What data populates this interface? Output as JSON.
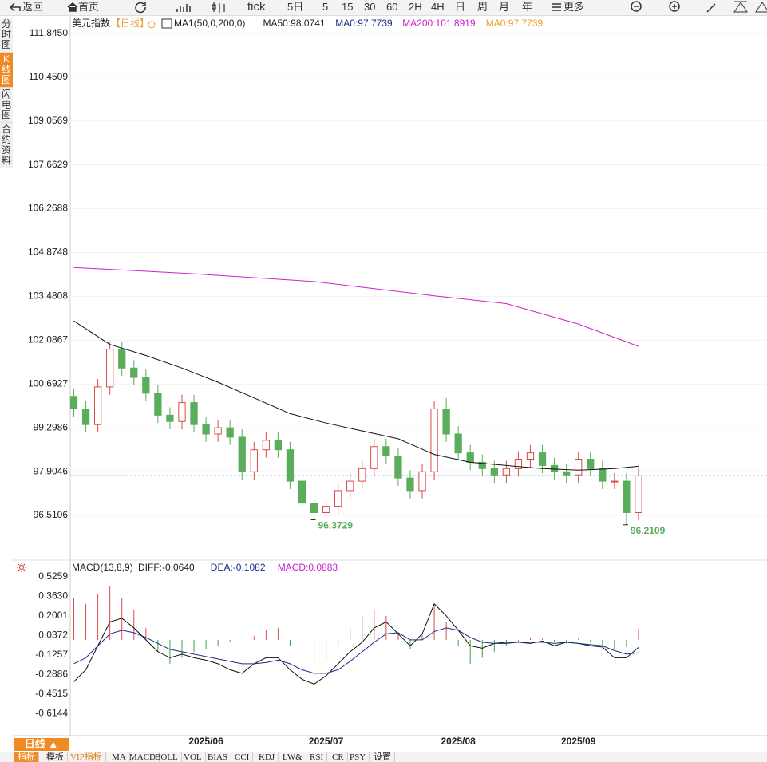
{
  "toolbar": {
    "items": [
      "返回",
      "首页",
      "tick",
      "5日",
      "5",
      "15",
      "30",
      "60",
      "2H",
      "4H",
      "日",
      "周",
      "月",
      "年",
      "更多"
    ]
  },
  "sidebar": {
    "tabs": [
      "分时图",
      "K线图",
      "闪电图",
      "合约资料"
    ],
    "active": 1
  },
  "chart_data": [
    {
      "type": "candlestick",
      "title": "美元指数",
      "period": "【日线】",
      "legend": [
        {
          "text": "MA1(50,0,200,0)",
          "color": "#222222"
        },
        {
          "text": "MA50:98.0741",
          "color": "#222222"
        },
        {
          "text": "MA0:97.7739",
          "color": "#1a2a8c"
        },
        {
          "text": "MA200:101.8919",
          "color": "#cc22cc"
        },
        {
          "text": "MA0:97.7739",
          "color": "#e8a030"
        }
      ],
      "up_color": "#d94a4a",
      "down_color": "#5aad5a",
      "xlim": [
        -0.3,
        57.7
      ],
      "ylim": [
        95.14,
        112.35
      ],
      "grid": true,
      "yticks": [
        {
          "value": 111.845,
          "label": "111.8450"
        },
        {
          "value": 110.4509,
          "label": "110.4509"
        },
        {
          "value": 109.0569,
          "label": "109.0569"
        },
        {
          "value": 107.6629,
          "label": "107.6629"
        },
        {
          "value": 106.2688,
          "label": "106.2688"
        },
        {
          "value": 104.8748,
          "label": "104.8748"
        },
        {
          "value": 103.4808,
          "label": "103.4808"
        },
        {
          "value": 102.0867,
          "label": "102.0867"
        },
        {
          "value": 100.6927,
          "label": "100.6927"
        },
        {
          "value": 99.2986,
          "label": "99.2986"
        },
        {
          "value": 97.9046,
          "label": "97.9046"
        },
        {
          "value": 96.5106,
          "label": "96.5106"
        }
      ],
      "open": [
        100.3,
        99.9,
        99.4,
        100.6,
        101.8,
        101.2,
        100.9,
        100.4,
        99.7,
        99.5,
        100.1,
        99.4,
        99.1,
        99.3,
        99.0,
        97.9,
        98.6,
        98.9,
        98.6,
        97.6,
        96.9,
        96.6,
        96.8,
        97.3,
        97.6,
        98.0,
        98.7,
        98.4,
        97.7,
        97.3,
        97.9,
        99.9,
        99.1,
        98.5,
        98.2,
        98.0,
        97.8,
        98.0,
        98.3,
        98.5,
        98.1,
        97.9,
        97.8,
        98.3,
        98.0,
        97.6,
        97.6,
        96.6
      ],
      "high": [
        100.55,
        100.15,
        100.85,
        102.05,
        102.05,
        101.45,
        101.15,
        100.65,
        99.95,
        100.35,
        100.35,
        99.65,
        99.55,
        99.55,
        99.25,
        98.85,
        99.15,
        99.15,
        98.85,
        97.85,
        97.15,
        97.05,
        97.55,
        97.85,
        98.25,
        98.95,
        98.95,
        98.65,
        97.95,
        98.15,
        100.15,
        100.25,
        99.35,
        98.75,
        98.45,
        98.25,
        98.25,
        98.55,
        98.75,
        98.75,
        98.35,
        98.15,
        98.55,
        98.55,
        98.25,
        97.85,
        97.85,
        98.0
      ],
      "low": [
        99.65,
        99.15,
        99.15,
        100.35,
        100.95,
        100.65,
        100.15,
        99.45,
        99.25,
        99.25,
        99.15,
        98.85,
        98.85,
        98.75,
        97.65,
        97.65,
        98.35,
        98.35,
        97.35,
        96.65,
        96.3729,
        96.45,
        96.55,
        97.05,
        97.35,
        97.75,
        98.15,
        97.45,
        97.05,
        97.05,
        97.65,
        98.85,
        98.25,
        97.95,
        97.75,
        97.55,
        97.55,
        97.75,
        98.05,
        97.85,
        97.65,
        97.55,
        97.55,
        97.75,
        97.35,
        97.35,
        96.2109,
        96.35
      ],
      "close": [
        99.9,
        99.4,
        100.6,
        101.8,
        101.2,
        100.9,
        100.4,
        99.7,
        99.5,
        100.1,
        99.4,
        99.1,
        99.3,
        99.0,
        97.9,
        98.6,
        98.9,
        98.6,
        97.6,
        96.9,
        96.6,
        96.8,
        97.3,
        97.6,
        98.0,
        98.7,
        98.4,
        97.7,
        97.3,
        97.9,
        99.9,
        99.1,
        98.5,
        98.2,
        98.0,
        97.8,
        98.0,
        98.3,
        98.5,
        98.1,
        97.9,
        97.8,
        98.3,
        98.0,
        97.6,
        97.6,
        96.6,
        97.77
      ],
      "annotations": [
        {
          "index": 20
        },
        {
          "index": 46
        }
      ],
      "annotation_color": "#5aad5a",
      "lines": [
        {
          "color": "#111111",
          "x": [
            0,
            3,
            6,
            9,
            12,
            15,
            18,
            21,
            24,
            27,
            30,
            33,
            36,
            39,
            42,
            45,
            47
          ],
          "values": [
            102.7,
            101.95,
            101.6,
            101.2,
            100.75,
            100.25,
            99.75,
            99.45,
            99.2,
            98.95,
            98.45,
            98.2,
            98.1,
            98.0,
            97.95,
            98.0,
            98.0741
          ]
        },
        {
          "color": "#cc22cc",
          "x": [
            0,
            10,
            20,
            30,
            36,
            42,
            47
          ],
          "values": [
            104.4,
            104.2,
            103.95,
            103.5,
            103.25,
            102.6,
            101.8919
          ]
        }
      ],
      "hline": {
        "value": 97.7739,
        "color": "#3a8fb7"
      }
    },
    {
      "type": "macd",
      "title": "MACD(13,8,9)",
      "legend": [
        {
          "text": "DIFF:-0.0640",
          "color": "#222222"
        },
        {
          "text": "DEA:-0.1082",
          "color": "#1a2a8c"
        },
        {
          "text": "MACD:0.0883",
          "color": "#cc22cc"
        }
      ],
      "xlim": [
        -0.3,
        57.7
      ],
      "ylim": [
        -0.787,
        0.652
      ],
      "yticks": [
        {
          "value": 0.5259,
          "label": "0.5259"
        },
        {
          "value": 0.363,
          "label": "0.3630"
        },
        {
          "value": 0.2001,
          "label": "0.2001"
        },
        {
          "value": 0.0372,
          "label": "0.0372"
        },
        {
          "value": -0.1257,
          "label": "-0.1257"
        },
        {
          "value": -0.2886,
          "label": "-0.2886"
        },
        {
          "value": -0.4515,
          "label": "-0.4515"
        },
        {
          "value": -0.6144,
          "label": "-0.6144"
        }
      ],
      "xticks": [
        {
          "value": 11,
          "label": "2025/06"
        },
        {
          "value": 21,
          "label": "2025/07"
        },
        {
          "value": 32,
          "label": "2025/08"
        },
        {
          "value": 42,
          "label": "2025/09"
        }
      ],
      "histogram": {
        "up_color": "#d94a4a",
        "down_color": "#3aa53a",
        "values": [
          0.35,
          0.3,
          0.38,
          0.45,
          0.35,
          0.25,
          0.1,
          -0.1,
          -0.2,
          -0.15,
          -0.1,
          -0.08,
          -0.05,
          -0.02,
          0.0,
          0.03,
          0.08,
          0.1,
          -0.05,
          -0.15,
          -0.2,
          -0.18,
          -0.05,
          0.1,
          0.2,
          0.25,
          0.2,
          0.05,
          -0.08,
          0.05,
          0.3,
          0.15,
          -0.05,
          -0.2,
          -0.15,
          -0.1,
          -0.05,
          -0.02,
          0.02,
          0.01,
          -0.02,
          -0.03,
          0.01,
          -0.02,
          -0.05,
          -0.08,
          -0.06,
          0.0883
        ]
      },
      "series": [
        {
          "color": "#111111",
          "values": [
            -0.35,
            -0.25,
            -0.05,
            0.15,
            0.18,
            0.1,
            0.0,
            -0.1,
            -0.15,
            -0.12,
            -0.15,
            -0.17,
            -0.2,
            -0.25,
            -0.28,
            -0.2,
            -0.15,
            -0.15,
            -0.25,
            -0.33,
            -0.37,
            -0.3,
            -0.2,
            -0.1,
            -0.02,
            0.1,
            0.15,
            0.05,
            -0.05,
            0.05,
            0.3,
            0.2,
            0.08,
            -0.05,
            -0.07,
            -0.03,
            -0.02,
            -0.02,
            -0.03,
            -0.01,
            -0.05,
            -0.02,
            -0.03,
            -0.05,
            -0.06,
            -0.15,
            -0.15,
            -0.064
          ]
        },
        {
          "color": "#1a2a8c",
          "values": [
            -0.2,
            -0.15,
            -0.05,
            0.05,
            0.08,
            0.06,
            0.02,
            -0.03,
            -0.08,
            -0.1,
            -0.12,
            -0.14,
            -0.16,
            -0.18,
            -0.2,
            -0.2,
            -0.19,
            -0.17,
            -0.2,
            -0.25,
            -0.28,
            -0.28,
            -0.25,
            -0.18,
            -0.1,
            -0.02,
            0.05,
            0.06,
            0.0,
            0.0,
            0.07,
            0.1,
            0.08,
            0.02,
            -0.02,
            -0.03,
            -0.03,
            -0.02,
            -0.02,
            -0.02,
            -0.03,
            -0.02,
            -0.03,
            -0.04,
            -0.05,
            -0.09,
            -0.12,
            -0.1082
          ]
        }
      ]
    }
  ],
  "bottom_bar": {
    "period": "日线 ▲",
    "tabs": [
      "指标",
      "模板",
      "VIP指标",
      "MA",
      "MACD",
      "BOLL",
      "VOL",
      "BIAS",
      "CCI",
      "KDJ",
      "LW&",
      "RSI",
      "CR",
      "PSY",
      "设置"
    ],
    "active": 0
  }
}
